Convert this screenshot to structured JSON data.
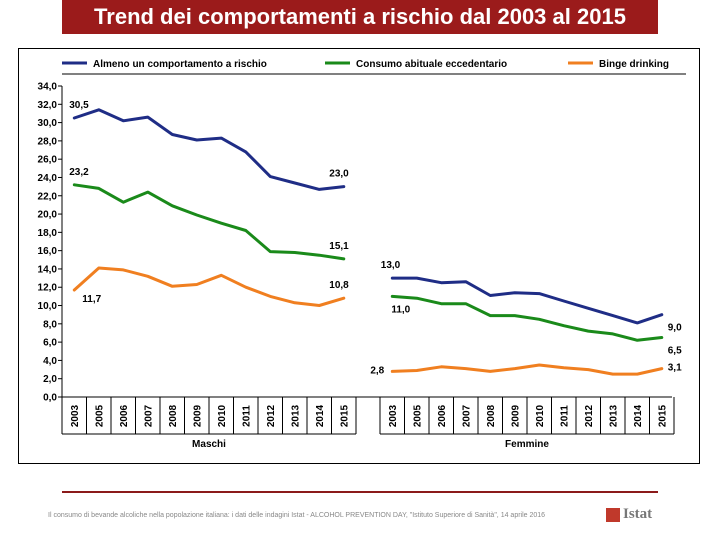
{
  "title": "Trend dei comportamenti a rischio dal 2003 al 2015",
  "footer": "Il consumo di bevande alcoliche nella popolazione italiana: i dati delle indagini Istat - ALCOHOL PREVENTION DAY, \"Istituto Superiore di Sanità\", 14 aprile 2016",
  "logo_text": "Istat",
  "colors": {
    "title_bg": "#9b1b1b",
    "series": [
      "#1f2d86",
      "#1a8a1a",
      "#f07f20"
    ]
  },
  "chart_data": {
    "type": "line",
    "ylim": [
      0,
      34
    ],
    "ytick_step": 2,
    "grid": false,
    "legend_position": "top",
    "categories": [
      "2003",
      "2005",
      "2006",
      "2007",
      "2008",
      "2009",
      "2010",
      "2011",
      "2012",
      "2013",
      "2014",
      "2015"
    ],
    "groups": [
      {
        "name": "Maschi",
        "series": [
          {
            "name": "Almeno un comportamento a rischio",
            "values": [
              30.5,
              31.4,
              30.2,
              30.6,
              28.7,
              28.1,
              28.3,
              26.8,
              24.1,
              23.4,
              22.7,
              23.0
            ]
          },
          {
            "name": "Consumo abituale eccedentario",
            "values": [
              23.2,
              22.8,
              21.3,
              22.4,
              20.9,
              19.9,
              19.0,
              18.2,
              15.9,
              15.8,
              15.5,
              15.1
            ]
          },
          {
            "name": "Binge drinking",
            "values": [
              11.7,
              14.1,
              13.9,
              13.2,
              12.1,
              12.3,
              13.3,
              12.0,
              11.0,
              10.3,
              10.0,
              10.8
            ]
          }
        ],
        "labels": [
          {
            "series": 0,
            "index": 0,
            "text": "30,5"
          },
          {
            "series": 0,
            "index": 11,
            "text": "23,0"
          },
          {
            "series": 1,
            "index": 0,
            "text": "23,2"
          },
          {
            "series": 1,
            "index": 11,
            "text": "15,1"
          },
          {
            "series": 2,
            "index": 0,
            "text": "11,7"
          },
          {
            "series": 2,
            "index": 11,
            "text": "10,8"
          }
        ]
      },
      {
        "name": "Femmine",
        "series": [
          {
            "name": "Almeno un comportamento a rischio",
            "values": [
              13.0,
              13.0,
              12.5,
              12.6,
              11.1,
              11.4,
              11.3,
              10.5,
              9.7,
              8.9,
              8.1,
              9.0
            ]
          },
          {
            "name": "Consumo abituale eccedentario",
            "values": [
              11.0,
              10.8,
              10.2,
              10.2,
              8.9,
              8.9,
              8.5,
              7.8,
              7.2,
              6.9,
              6.2,
              6.5
            ]
          },
          {
            "name": "Binge drinking",
            "values": [
              2.8,
              2.9,
              3.3,
              3.1,
              2.8,
              3.1,
              3.5,
              3.2,
              3.0,
              2.5,
              2.5,
              3.1
            ]
          }
        ],
        "labels": [
          {
            "series": 0,
            "index": 0,
            "text": "13,0"
          },
          {
            "series": 0,
            "index": 11,
            "text": "9,0"
          },
          {
            "series": 1,
            "index": 0,
            "text": "11,0"
          },
          {
            "series": 1,
            "index": 11,
            "text": "6,5"
          },
          {
            "series": 2,
            "index": 0,
            "text": "2,8"
          },
          {
            "series": 2,
            "index": 11,
            "text": "3,1"
          }
        ]
      }
    ]
  }
}
